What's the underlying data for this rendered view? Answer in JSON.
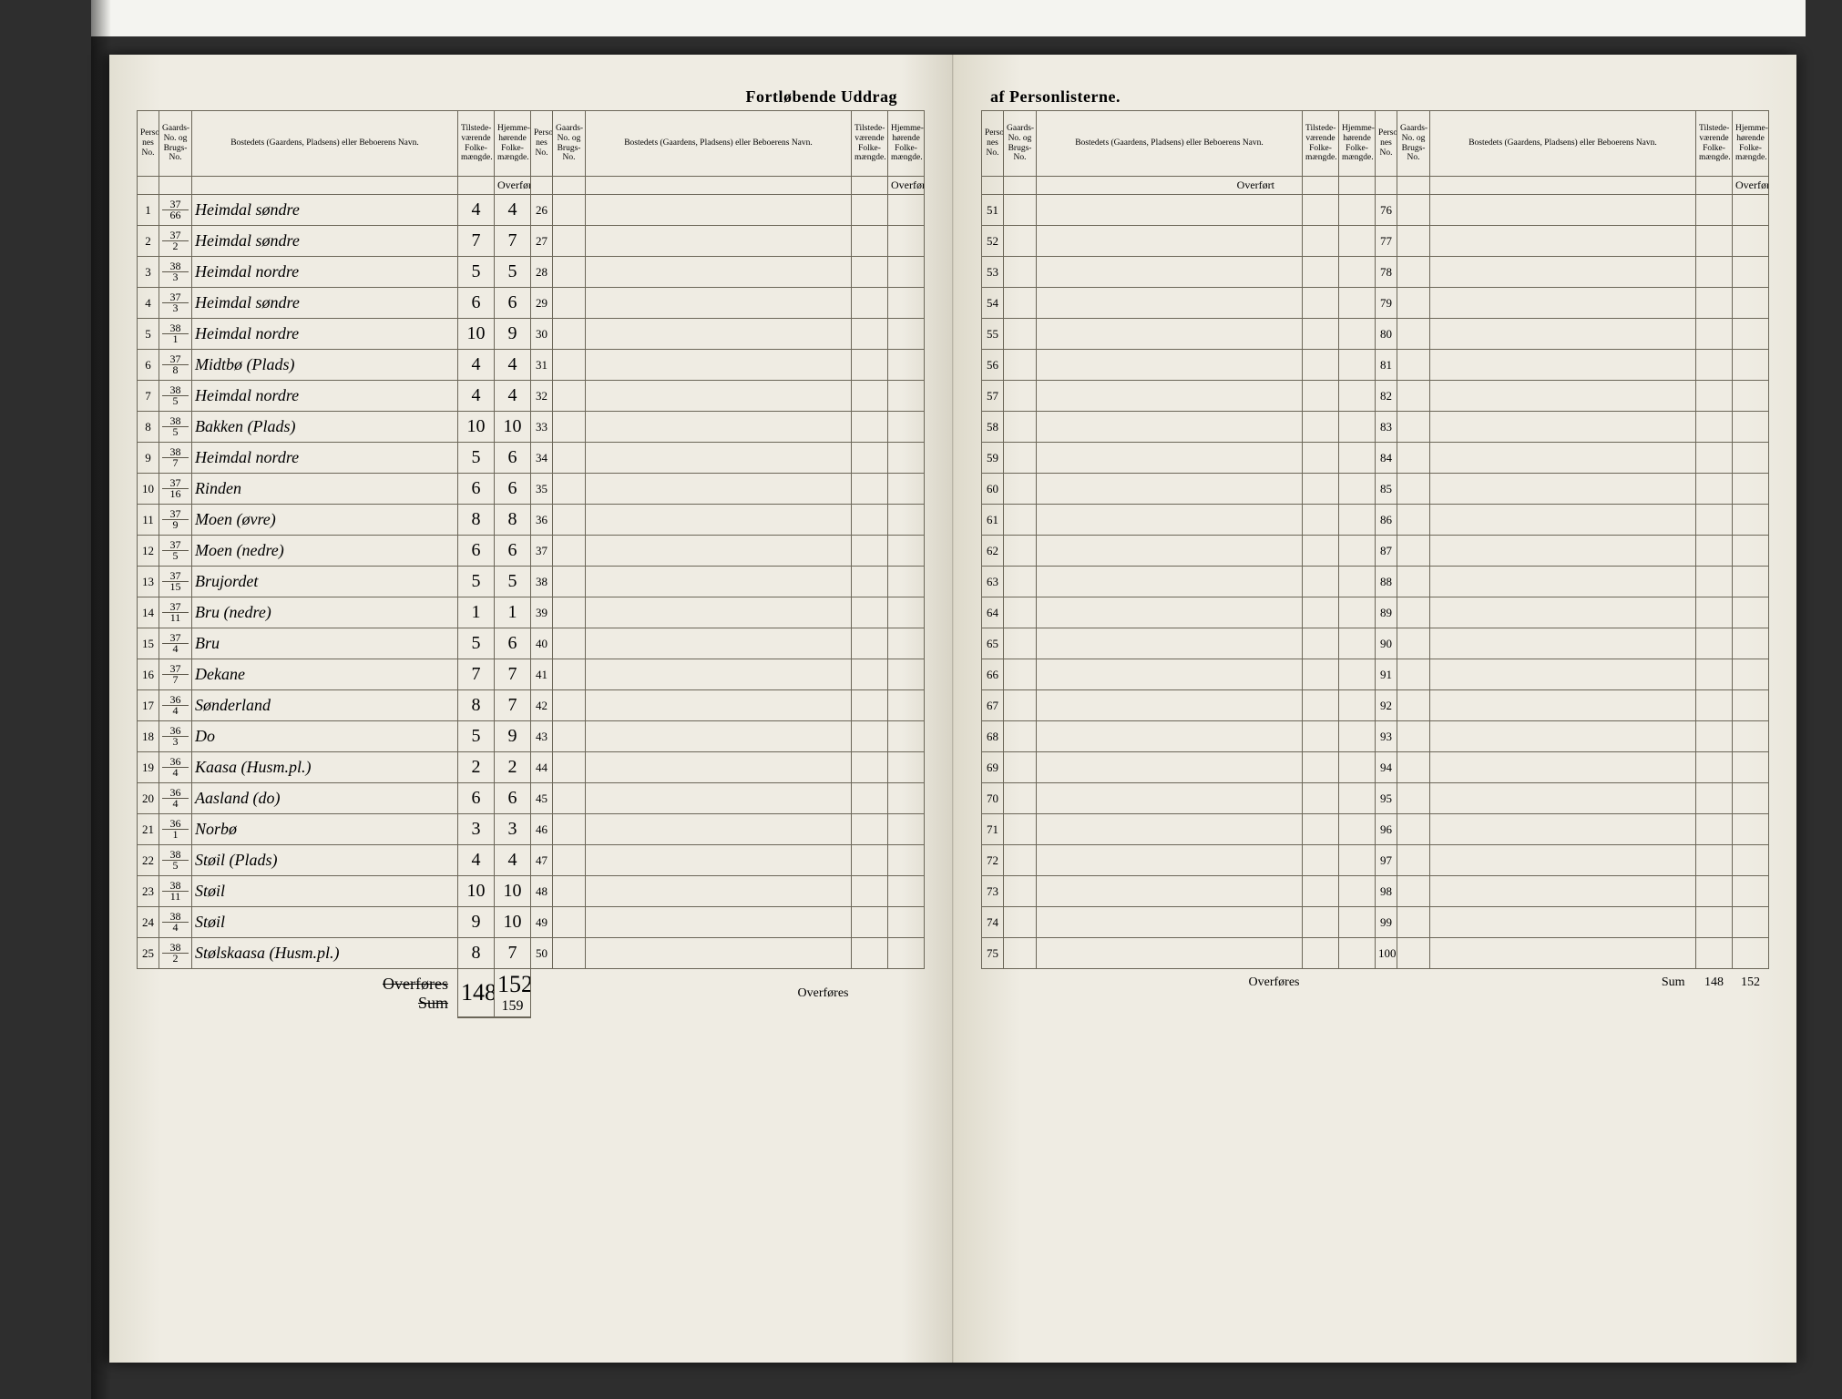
{
  "title_left": "Fortløbende Uddrag",
  "title_right": "af Personlisterne.",
  "headers": {
    "no": "Personlister-\nnes No.",
    "gb": "Gaards-\nNo.\nog\nBrugs-\nNo.",
    "name": "Bostedets (Gaardens, Pladsens) eller\nBeboerens Navn.",
    "tilst": "Tilstede-\nværende\nFolke-\nmængde.",
    "hjem": "Hjemme-\nhørende\nFolke-\nmængde."
  },
  "overfort": "Overført",
  "overfores": "Overføres",
  "sum_label_strike": "Overføres",
  "sum_label": "Sum",
  "rows": [
    {
      "no": "1",
      "gt": "37",
      "gb": "66",
      "name": "Heimdal søndre",
      "t": "4",
      "h": "4"
    },
    {
      "no": "2",
      "gt": "37",
      "gb": "2",
      "name": "Heimdal søndre",
      "t": "7",
      "h": "7"
    },
    {
      "no": "3",
      "gt": "38",
      "gb": "3",
      "name": "Heimdal nordre",
      "t": "5",
      "h": "5"
    },
    {
      "no": "4",
      "gt": "37",
      "gb": "3",
      "name": "Heimdal søndre",
      "t": "6",
      "h": "6"
    },
    {
      "no": "5",
      "gt": "38",
      "gb": "1",
      "name": "Heimdal nordre",
      "t": "10",
      "h": "9"
    },
    {
      "no": "6",
      "gt": "37",
      "gb": "8",
      "name": "Midtbø (Plads)",
      "t": "4",
      "h": "4"
    },
    {
      "no": "7",
      "gt": "38",
      "gb": "5",
      "name": "Heimdal nordre",
      "t": "4",
      "h": "4"
    },
    {
      "no": "8",
      "gt": "38",
      "gb": "5",
      "name": "Bakken (Plads)",
      "t": "10",
      "h": "10"
    },
    {
      "no": "9",
      "gt": "38",
      "gb": "7",
      "name": "Heimdal nordre",
      "t": "5",
      "h": "6"
    },
    {
      "no": "10",
      "gt": "37",
      "gb": "16",
      "name": "Rinden",
      "t": "6",
      "h": "6"
    },
    {
      "no": "11",
      "gt": "37",
      "gb": "9",
      "name": "Moen (øvre)",
      "t": "8",
      "h": "8"
    },
    {
      "no": "12",
      "gt": "37",
      "gb": "5",
      "name": "Moen (nedre)",
      "t": "6",
      "h": "6"
    },
    {
      "no": "13",
      "gt": "37",
      "gb": "15",
      "name": "Brujordet",
      "t": "5",
      "h": "5"
    },
    {
      "no": "14",
      "gt": "37",
      "gb": "11",
      "name": "Bru (nedre)",
      "t": "1",
      "h": "1"
    },
    {
      "no": "15",
      "gt": "37",
      "gb": "4",
      "name": "Bru",
      "t": "5",
      "h": "6"
    },
    {
      "no": "16",
      "gt": "37",
      "gb": "7",
      "name": "Dekane",
      "t": "7",
      "h": "7"
    },
    {
      "no": "17",
      "gt": "36",
      "gb": "4",
      "name": "Sønderland",
      "t": "8",
      "h": "7"
    },
    {
      "no": "18",
      "gt": "36",
      "gb": "3",
      "name": "Do",
      "t": "5",
      "h": "9"
    },
    {
      "no": "19",
      "gt": "36",
      "gb": "4",
      "name": "Kaasa (Husm.pl.)",
      "t": "2",
      "h": "2"
    },
    {
      "no": "20",
      "gt": "36",
      "gb": "4",
      "name": "Aasland (do)",
      "t": "6",
      "h": "6"
    },
    {
      "no": "21",
      "gt": "36",
      "gb": "1",
      "name": "Norbø",
      "t": "3",
      "h": "3"
    },
    {
      "no": "22",
      "gt": "38",
      "gb": "5",
      "name": "Støil (Plads)",
      "t": "4",
      "h": "4"
    },
    {
      "no": "23",
      "gt": "38",
      "gb": "11",
      "name": "Støil",
      "t": "10",
      "h": "10"
    },
    {
      "no": "24",
      "gt": "38",
      "gb": "4",
      "name": "Støil",
      "t": "9",
      "h": "10"
    },
    {
      "no": "25",
      "gt": "38",
      "gb": "2",
      "name": "Stølskaasa (Husm.pl.)",
      "t": "8",
      "h": "7"
    }
  ],
  "blank2": {
    "start": 26,
    "end": 50
  },
  "blank3": {
    "start": 51,
    "end": 75
  },
  "blank4": {
    "start": 76,
    "end": 100
  },
  "sum_t": "148",
  "sum_h": "152",
  "sum_h_corr": "159",
  "grand_sum_t": "148",
  "grand_sum_h": "152",
  "colors": {
    "ink": "#3a362c",
    "rule": "#6b6658",
    "paper": "#efece3",
    "frame": "#2e2e2e"
  }
}
